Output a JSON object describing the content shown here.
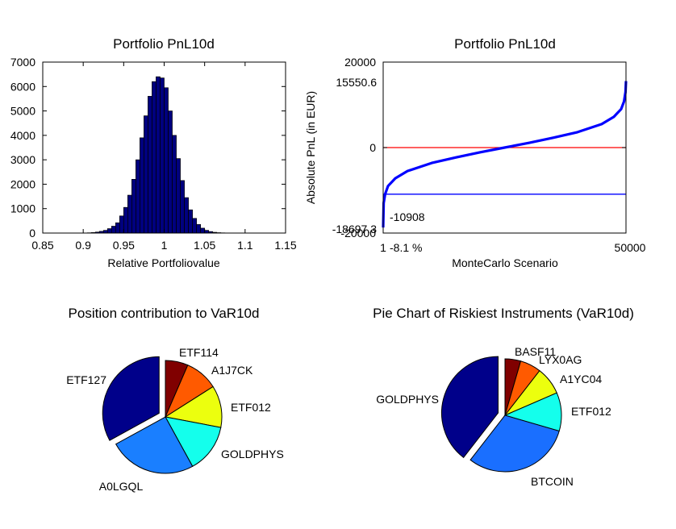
{
  "chart_data": [
    {
      "type": "bar",
      "title": "Portfolio PnL10d",
      "xlabel": "Relative Portfoliovalue",
      "ylabel": "",
      "xlim": [
        0.85,
        1.15
      ],
      "ylim": [
        0,
        7000
      ],
      "xticks": [
        "0.85",
        "0.9",
        "0.95",
        "1",
        "1.05",
        "1.1",
        "1.15"
      ],
      "yticks": [
        "0",
        "1000",
        "2000",
        "3000",
        "4000",
        "5000",
        "6000",
        "7000"
      ],
      "bin_width": 0.005,
      "bin_centers": [
        0.9025,
        0.9075,
        0.9125,
        0.9175,
        0.9225,
        0.9275,
        0.9325,
        0.9375,
        0.9425,
        0.9475,
        0.9525,
        0.9575,
        0.9625,
        0.9675,
        0.9725,
        0.9775,
        0.9825,
        0.9875,
        0.9925,
        0.9975,
        1.0025,
        1.0075,
        1.0125,
        1.0175,
        1.0225,
        1.0275,
        1.0325,
        1.0375,
        1.0425,
        1.0475,
        1.0525,
        1.0575,
        1.0625,
        1.0675,
        1.0725,
        1.0775
      ],
      "values": [
        5,
        10,
        20,
        40,
        70,
        110,
        180,
        280,
        420,
        700,
        1050,
        1550,
        2200,
        3000,
        3900,
        4800,
        5600,
        6200,
        6400,
        6350,
        5950,
        5000,
        4000,
        3050,
        2150,
        1450,
        950,
        600,
        350,
        200,
        110,
        60,
        30,
        15,
        8,
        4
      ],
      "bar_color": "#00007f"
    },
    {
      "type": "line",
      "title": "Portfolio PnL10d",
      "xlabel": "MonteCarlo Scenario",
      "ylabel": "Absolute PnL (in EUR)",
      "xlim": [
        1,
        50000
      ],
      "ylim": [
        -20000,
        20000
      ],
      "xticks": [
        "1",
        "50000"
      ],
      "yticks": [
        "-20000",
        "0",
        "20000"
      ],
      "annotations": {
        "max_value": "15550.6",
        "min_value": "-18697.3",
        "var_value": "-10908",
        "var_percent": "-8.1 %"
      },
      "series": [
        {
          "color": "#0000ff",
          "x": [
            1,
            100,
            400,
            1000,
            2500,
            5000,
            10000,
            15000,
            20000,
            25000,
            30000,
            35000,
            40000,
            45000,
            47500,
            49000,
            49600,
            49900,
            50000
          ],
          "values": [
            -18697.3,
            -13000,
            -10908,
            -9000,
            -7200,
            -5500,
            -3600,
            -2300,
            -1100,
            0,
            1100,
            2300,
            3600,
            5500,
            7200,
            9000,
            10800,
            13000,
            15550.6
          ]
        }
      ],
      "reference_lines": [
        {
          "y": 0,
          "color": "#ff0000"
        },
        {
          "y": -10908,
          "color": "#0000ff"
        }
      ]
    },
    {
      "type": "pie",
      "title": "Position contribution to VaR10d",
      "labels": [
        "ETF114",
        "A1J7CK",
        "ETF012",
        "GOLDPHYS",
        "A0LGQL",
        "ETF127"
      ],
      "values": [
        6.5,
        9.5,
        12,
        14,
        25,
        33
      ],
      "colors": [
        "#800000",
        "#ff5a00",
        "#ecff0e",
        "#14ffec",
        "#1a7fff",
        "#00008a"
      ],
      "exploded": "ETF127"
    },
    {
      "type": "pie",
      "title": "Pie Chart of Riskiest Instruments (VaR10d)",
      "labels": [
        "BASF11",
        "LYX0AG",
        "A1YC04",
        "ETF012",
        "BTCOIN",
        "GOLDPHYS"
      ],
      "values": [
        4.5,
        6,
        8,
        11,
        31,
        39.5
      ],
      "colors": [
        "#800000",
        "#ff5a00",
        "#ecff0e",
        "#14ffec",
        "#1a6fff",
        "#00008a"
      ],
      "exploded": "GOLDPHYS"
    }
  ]
}
